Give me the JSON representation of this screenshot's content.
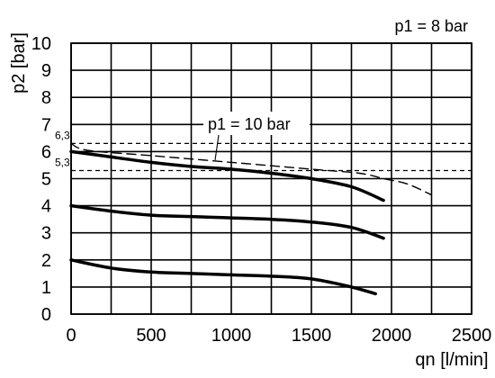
{
  "chart_data": {
    "type": "line",
    "title": "p1 = 8 bar",
    "xlabel": "qn [l/min]",
    "ylabel": "p2 [bar]",
    "xlim": [
      0,
      2500
    ],
    "ylim": [
      0,
      10
    ],
    "x_ticks": [
      "0",
      "500",
      "1000",
      "1500",
      "2000",
      "2500"
    ],
    "y_ticks": [
      "0",
      "1",
      "2",
      "3",
      "4",
      "5",
      "6",
      "7",
      "8",
      "9",
      "10"
    ],
    "grid": true,
    "reference_lines": [
      {
        "label": "6,3",
        "y": 6.3
      },
      {
        "label": "5,3",
        "y": 5.3
      }
    ],
    "annotation": "p1 = 10 bar",
    "series": [
      {
        "style": "solid",
        "x": [
          0,
          250,
          500,
          750,
          1000,
          1250,
          1500,
          1750,
          1950
        ],
        "y": [
          6.0,
          5.8,
          5.6,
          5.45,
          5.35,
          5.2,
          5.0,
          4.7,
          4.2
        ]
      },
      {
        "style": "solid",
        "x": [
          0,
          250,
          500,
          750,
          1000,
          1250,
          1500,
          1750,
          1950
        ],
        "y": [
          4.0,
          3.8,
          3.65,
          3.6,
          3.55,
          3.5,
          3.4,
          3.2,
          2.8
        ]
      },
      {
        "style": "solid",
        "x": [
          0,
          250,
          500,
          750,
          1000,
          1250,
          1500,
          1750,
          1900
        ],
        "y": [
          2.0,
          1.7,
          1.55,
          1.5,
          1.45,
          1.4,
          1.3,
          1.0,
          0.75
        ]
      },
      {
        "name": "p1 = 10 bar",
        "style": "dashed",
        "x": [
          0,
          100,
          500,
          1000,
          1500,
          1800,
          1950,
          2100,
          2250
        ],
        "y": [
          6.3,
          6.05,
          5.85,
          5.6,
          5.35,
          5.2,
          5.0,
          4.8,
          4.4
        ]
      }
    ]
  }
}
